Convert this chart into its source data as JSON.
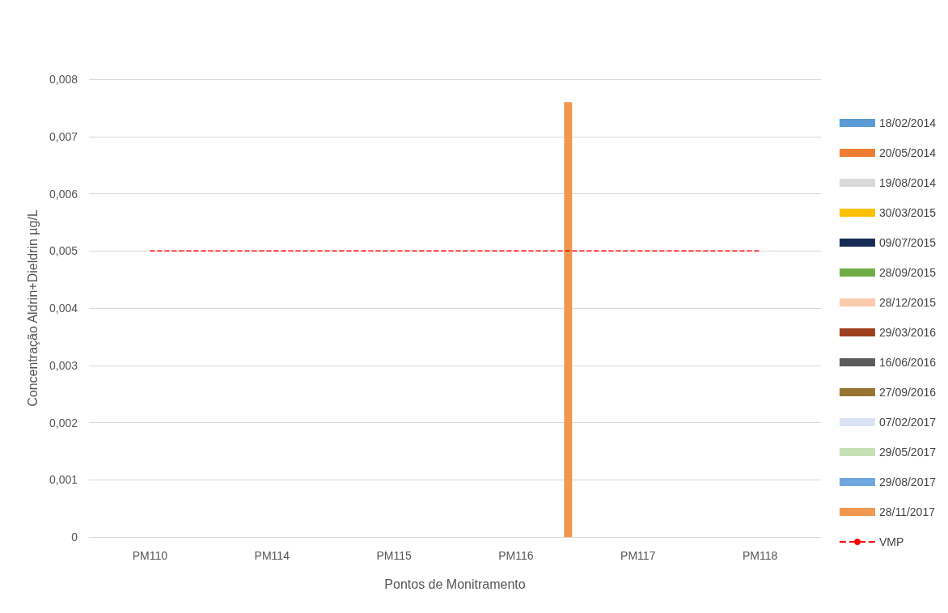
{
  "chart_data": {
    "type": "bar",
    "xlabel": "Pontos de Monitramento",
    "ylabel": "Concentração Aldrin+Dieldrin µg/L",
    "categories": [
      "PM110",
      "PM114",
      "PM115",
      "PM116",
      "PM117",
      "PM118"
    ],
    "series": [
      {
        "name": "18/02/2014",
        "color": "#5b9bd5",
        "values": [
          0,
          0,
          0,
          0,
          0,
          0
        ]
      },
      {
        "name": "20/05/2014",
        "color": "#ed7d31",
        "values": [
          0,
          0,
          0,
          0,
          0,
          0
        ]
      },
      {
        "name": "19/08/2014",
        "color": "#d9d9d9",
        "values": [
          0,
          0,
          0,
          0,
          0,
          0
        ]
      },
      {
        "name": "30/03/2015",
        "color": "#ffc000",
        "values": [
          0,
          0,
          0,
          0,
          0,
          0
        ]
      },
      {
        "name": "09/07/2015",
        "color": "#152b55",
        "values": [
          0,
          0,
          0,
          0,
          0,
          0
        ]
      },
      {
        "name": "28/09/2015",
        "color": "#70ad47",
        "values": [
          0,
          0,
          0,
          0,
          0,
          0
        ]
      },
      {
        "name": "28/12/2015",
        "color": "#f8cbad",
        "values": [
          0,
          0,
          0,
          0,
          0,
          0
        ]
      },
      {
        "name": "29/03/2016",
        "color": "#9e3f1e",
        "values": [
          0,
          0,
          0,
          0,
          0,
          0
        ]
      },
      {
        "name": "16/06/2016",
        "color": "#5b5b5b",
        "values": [
          0,
          0,
          0,
          0,
          0,
          0
        ]
      },
      {
        "name": "27/09/2016",
        "color": "#997330",
        "values": [
          0,
          0,
          0,
          0,
          0,
          0
        ]
      },
      {
        "name": "07/02/2017",
        "color": "#dae3f3",
        "values": [
          0,
          0,
          0,
          0,
          0,
          0
        ]
      },
      {
        "name": "29/05/2017",
        "color": "#c5e0b4",
        "values": [
          0,
          0,
          0,
          0,
          0,
          0
        ]
      },
      {
        "name": "29/08/2017",
        "color": "#6fa8dc",
        "values": [
          0,
          0,
          0,
          0,
          0,
          0
        ]
      },
      {
        "name": "28/11/2017",
        "color": "#f1974f",
        "values": [
          0,
          0,
          0,
          0.0076,
          0,
          0
        ]
      },
      {
        "name": "VMP",
        "type": "line",
        "color": "#ff0000",
        "line_style": "dashed",
        "marker": "none",
        "values": [
          0.005,
          0.005,
          0.005,
          0.005,
          0.005,
          0.005
        ]
      }
    ],
    "ylim": [
      0,
      0.008
    ],
    "yticks": [
      0,
      {
        "value": 0.001,
        "label": "0,001"
      },
      {
        "value": 0.002,
        "label": "0,002"
      },
      {
        "value": 0.003,
        "label": "0,003"
      },
      {
        "value": 0.004,
        "label": "0,004"
      },
      {
        "value": 0.005,
        "label": "0,005"
      },
      {
        "value": 0.006,
        "label": "0,006"
      },
      {
        "value": 0.007,
        "label": "0,007"
      },
      {
        "value": 0.008,
        "label": "0,008"
      }
    ],
    "grid": "y",
    "legend": "right"
  }
}
